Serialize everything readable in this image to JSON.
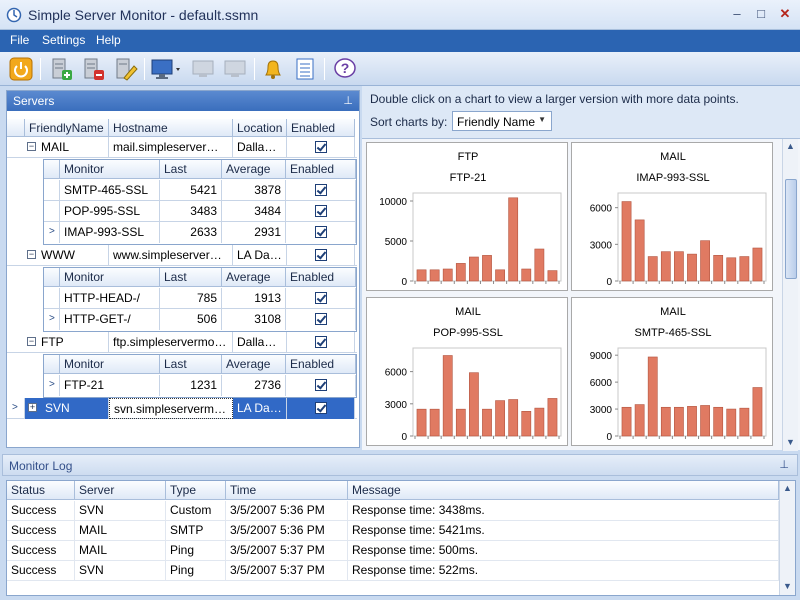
{
  "window": {
    "title": "Simple Server Monitor - default.ssmn"
  },
  "menu": [
    "File",
    "Settings",
    "Help"
  ],
  "toolbar": {
    "icons": [
      "power-icon",
      "add-server-icon",
      "remove-server-icon",
      "edit-server-icon",
      "add-monitor-icon",
      "remove-monitor-icon",
      "edit-monitor-icon",
      "alert-bell-icon",
      "log-list-icon",
      "help-icon"
    ]
  },
  "servers_panel": {
    "title": "Servers",
    "columns": [
      "FriendlyName",
      "Hostname",
      "Location",
      "Enabled"
    ],
    "monitor_columns": [
      "Monitor",
      "Last",
      "Average",
      "Enabled"
    ],
    "servers": [
      {
        "name": "MAIL",
        "hostname": "mail.simpleservermoni...",
        "location": "Dallas ...",
        "enabled": true,
        "monitors": [
          {
            "name": "SMTP-465-SSL",
            "last": "5421",
            "average": "3878",
            "enabled": true
          },
          {
            "name": "POP-995-SSL",
            "last": "3483",
            "average": "3484",
            "enabled": true
          },
          {
            "name": "IMAP-993-SSL",
            "last": "2633",
            "average": "2931",
            "enabled": true
          }
        ]
      },
      {
        "name": "WWW",
        "hostname": "www.simpleservermo...",
        "location": "LA Dat...",
        "enabled": true,
        "monitors": [
          {
            "name": "HTTP-HEAD-/",
            "last": "785",
            "average": "1913",
            "enabled": true
          },
          {
            "name": "HTTP-GET-/",
            "last": "506",
            "average": "3108",
            "enabled": true
          }
        ]
      },
      {
        "name": "FTP",
        "hostname": "ftp.simpleservermonit...",
        "location": "Dallas ...",
        "enabled": true,
        "monitors": [
          {
            "name": "FTP-21",
            "last": "1231",
            "average": "2736",
            "enabled": true
          }
        ]
      },
      {
        "name": "SVN",
        "hostname": "svn.simpleservermoni...",
        "location": "LA Dat...",
        "enabled": true,
        "monitors": []
      }
    ]
  },
  "charts_panel": {
    "hint": "Double click on a chart to view a larger version with more data points.",
    "sort_label": "Sort charts by:",
    "sort_value": "Friendly Name"
  },
  "chart_data": [
    {
      "type": "bar",
      "title": "FTP",
      "subtitle": "FTP-21",
      "ylim": [
        0,
        11000
      ],
      "yticks": [
        "10000",
        "5000",
        "0"
      ],
      "ytick_values": [
        10000,
        5000,
        0
      ],
      "values": [
        1400,
        1400,
        1500,
        2200,
        3000,
        3200,
        1400,
        10400,
        1500,
        4000,
        1300
      ],
      "color": "#e07a62"
    },
    {
      "type": "bar",
      "title": "MAIL",
      "subtitle": "IMAP-993-SSL",
      "ylim": [
        0,
        7200
      ],
      "yticks": [
        "6000",
        "3000",
        "0"
      ],
      "ytick_values": [
        6000,
        3000,
        0
      ],
      "values": [
        6500,
        5000,
        2000,
        2400,
        2400,
        2200,
        3300,
        2100,
        1900,
        2000,
        2700
      ],
      "color": "#e07a62"
    },
    {
      "type": "bar",
      "title": "MAIL",
      "subtitle": "POP-995-SSL",
      "ylim": [
        0,
        8200
      ],
      "yticks": [
        "6000",
        "3000",
        "0"
      ],
      "ytick_values": [
        6000,
        3000,
        0
      ],
      "values": [
        2500,
        2500,
        7500,
        2500,
        5900,
        2500,
        3300,
        3400,
        2300,
        2600,
        3500
      ],
      "color": "#e07a62"
    },
    {
      "type": "bar",
      "title": "MAIL",
      "subtitle": "SMTP-465-SSL",
      "ylim": [
        0,
        9800
      ],
      "yticks": [
        "9000",
        "6000",
        "3000",
        "0"
      ],
      "ytick_values": [
        9000,
        6000,
        3000,
        0
      ],
      "values": [
        3200,
        3500,
        8800,
        3200,
        3200,
        3300,
        3400,
        3200,
        3000,
        3100,
        5400
      ],
      "color": "#e07a62"
    }
  ],
  "monitor_log": {
    "title": "Monitor Log",
    "columns": [
      "Status",
      "Server",
      "Type",
      "Time",
      "Message"
    ],
    "rows": [
      [
        "Success",
        "SVN",
        "Custom",
        "3/5/2007 5:36 PM",
        "Response time: 3438ms."
      ],
      [
        "Success",
        "MAIL",
        "SMTP",
        "3/5/2007 5:36 PM",
        "Response time: 5421ms."
      ],
      [
        "Success",
        "MAIL",
        "Ping",
        "3/5/2007 5:37 PM",
        "Response time: 500ms."
      ],
      [
        "Success",
        "SVN",
        "Ping",
        "3/5/2007 5:37 PM",
        "Response time: 522ms."
      ]
    ]
  }
}
